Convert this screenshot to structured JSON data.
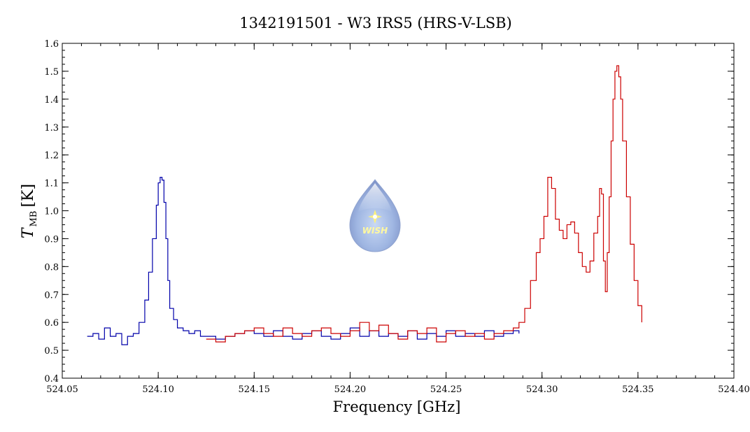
{
  "chart_data": {
    "type": "line",
    "title": "1342191501 - W3 IRS5 (HRS-V-LSB)",
    "xlabel": "Frequency [GHz]",
    "ylabel": {
      "main": "T",
      "subscript": "MB",
      "unit": "[K]"
    },
    "xlim": [
      524.05,
      524.4
    ],
    "ylim": [
      0.4,
      1.6
    ],
    "x_ticks": [
      "524.05",
      "524.10",
      "524.15",
      "524.20",
      "524.25",
      "524.30",
      "524.35",
      "524.40"
    ],
    "y_ticks": [
      "0.4",
      "0.5",
      "0.6",
      "0.7",
      "0.8",
      "0.9",
      "1.0",
      "1.1",
      "1.2",
      "1.3",
      "1.4",
      "1.5",
      "1.6"
    ],
    "grid": false,
    "series": [
      {
        "color": "#0000aa",
        "x": [
          524.063,
          524.066,
          524.069,
          524.072,
          524.075,
          524.078,
          524.081,
          524.084,
          524.087,
          524.09,
          524.093,
          524.095,
          524.097,
          524.099,
          524.1,
          524.101,
          524.102,
          524.103,
          524.104,
          524.105,
          524.106,
          524.108,
          524.11,
          524.113,
          524.116,
          524.119,
          524.122,
          524.125,
          524.13,
          524.135,
          524.14,
          524.145,
          524.15,
          524.155,
          524.16,
          524.165,
          524.17,
          524.175,
          524.18,
          524.185,
          524.19,
          524.195,
          524.2,
          524.205,
          524.21,
          524.215,
          524.22,
          524.225,
          524.23,
          524.235,
          524.24,
          524.245,
          524.25,
          524.255,
          524.26,
          524.265,
          524.27,
          524.275,
          524.28,
          524.285,
          524.288
        ],
        "y": [
          0.55,
          0.56,
          0.54,
          0.58,
          0.55,
          0.56,
          0.52,
          0.55,
          0.56,
          0.6,
          0.68,
          0.78,
          0.9,
          1.02,
          1.1,
          1.12,
          1.11,
          1.03,
          0.9,
          0.75,
          0.65,
          0.61,
          0.58,
          0.57,
          0.56,
          0.57,
          0.55,
          0.55,
          0.54,
          0.55,
          0.56,
          0.57,
          0.56,
          0.55,
          0.57,
          0.55,
          0.54,
          0.56,
          0.57,
          0.55,
          0.54,
          0.56,
          0.58,
          0.55,
          0.57,
          0.55,
          0.56,
          0.55,
          0.57,
          0.54,
          0.56,
          0.55,
          0.57,
          0.55,
          0.56,
          0.55,
          0.57,
          0.55,
          0.56,
          0.57,
          0.56
        ]
      },
      {
        "color": "#cc0000",
        "x": [
          524.125,
          524.13,
          524.135,
          524.14,
          524.145,
          524.15,
          524.155,
          524.16,
          524.165,
          524.17,
          524.175,
          524.18,
          524.185,
          524.19,
          524.195,
          524.2,
          524.205,
          524.21,
          524.215,
          524.22,
          524.225,
          524.23,
          524.235,
          524.24,
          524.245,
          524.25,
          524.255,
          524.26,
          524.265,
          524.27,
          524.275,
          524.28,
          524.285,
          524.288,
          524.291,
          524.294,
          524.297,
          524.299,
          524.301,
          524.303,
          524.305,
          524.307,
          524.309,
          524.311,
          524.313,
          524.315,
          524.317,
          524.319,
          524.321,
          524.323,
          524.325,
          524.327,
          524.329,
          524.33,
          524.331,
          524.332,
          524.333,
          524.334,
          524.335,
          524.336,
          524.337,
          524.338,
          524.339,
          524.34,
          524.341,
          524.342,
          524.344,
          524.346,
          524.348,
          524.35,
          524.352
        ],
        "y": [
          0.54,
          0.53,
          0.55,
          0.56,
          0.57,
          0.58,
          0.56,
          0.55,
          0.58,
          0.56,
          0.55,
          0.57,
          0.58,
          0.56,
          0.55,
          0.57,
          0.6,
          0.57,
          0.59,
          0.56,
          0.54,
          0.57,
          0.56,
          0.58,
          0.53,
          0.56,
          0.57,
          0.55,
          0.56,
          0.54,
          0.56,
          0.57,
          0.58,
          0.6,
          0.65,
          0.75,
          0.85,
          0.9,
          0.98,
          1.12,
          1.08,
          0.97,
          0.93,
          0.9,
          0.95,
          0.96,
          0.92,
          0.85,
          0.8,
          0.78,
          0.82,
          0.92,
          0.98,
          1.08,
          1.06,
          0.82,
          0.71,
          0.85,
          1.05,
          1.25,
          1.4,
          1.5,
          1.52,
          1.48,
          1.4,
          1.25,
          1.05,
          0.88,
          0.75,
          0.66,
          0.6
        ]
      }
    ]
  },
  "logo": {
    "text": "WISH",
    "icon": "wish-droplet-icon"
  }
}
